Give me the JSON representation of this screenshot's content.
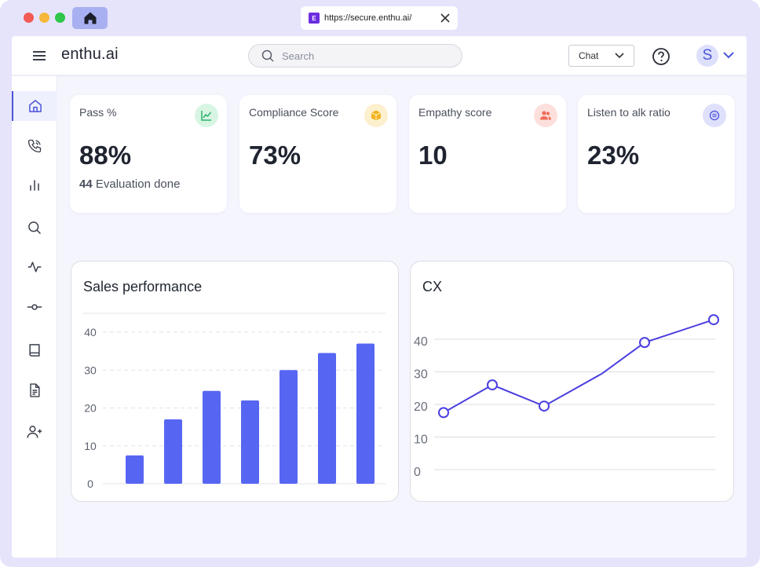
{
  "browser": {
    "url": "https://secure.enthu.ai/",
    "favicon_letter": "E"
  },
  "header": {
    "brand": "enthu.ai",
    "search_placeholder": "Search",
    "chat_select_value": "Chat",
    "avatar_initial": "S"
  },
  "sidebar": {
    "items": [
      {
        "icon": "home-icon",
        "active": true
      },
      {
        "icon": "phone-icon",
        "active": false
      },
      {
        "icon": "bar-chart-icon",
        "active": false
      },
      {
        "icon": "search-icon",
        "active": false
      },
      {
        "icon": "activity-icon",
        "active": false
      },
      {
        "icon": "commit-icon",
        "active": false
      },
      {
        "icon": "book-icon",
        "active": false
      },
      {
        "icon": "document-icon",
        "active": false
      },
      {
        "icon": "add-user-icon",
        "active": false
      }
    ]
  },
  "stats": [
    {
      "title": "Pass %",
      "value": "88%",
      "sub_count": "44",
      "sub_label": "Evaluation done",
      "icon": "trend-icon",
      "icon_bg": "#d8f5e4",
      "icon_color": "#2fb36a"
    },
    {
      "title": "Compliance Score",
      "value": "73%",
      "icon": "box-icon",
      "icon_bg": "#fdf0cf",
      "icon_color": "#f2b420"
    },
    {
      "title": "Empathy score",
      "value": "10",
      "icon": "users-icon",
      "icon_bg": "#fde0dc",
      "icon_color": "#ef6b5a"
    },
    {
      "title": "Listen to alk ratio",
      "value": "23%",
      "icon": "ratio-icon",
      "icon_bg": "#dfe0fb",
      "icon_color": "#5a5fe0"
    }
  ],
  "chart_data": [
    {
      "type": "bar",
      "title": "Sales performance",
      "yticks": [
        "40",
        "30",
        "20",
        "10",
        "0"
      ],
      "ylim": [
        0,
        40
      ],
      "values": [
        7.5,
        17,
        24.5,
        22,
        30,
        34.5,
        37
      ],
      "grid": true,
      "color": "#5766f2"
    },
    {
      "type": "line",
      "title": "CX",
      "yticks": [
        "40",
        "30",
        "20",
        "10",
        "0"
      ],
      "ylim": [
        0,
        40
      ],
      "values": [
        17.5,
        26,
        19.5,
        29.5,
        39,
        46
      ],
      "markers": [
        true,
        true,
        true,
        false,
        true,
        true
      ],
      "grid": true,
      "color": "#4b3fe0"
    }
  ]
}
